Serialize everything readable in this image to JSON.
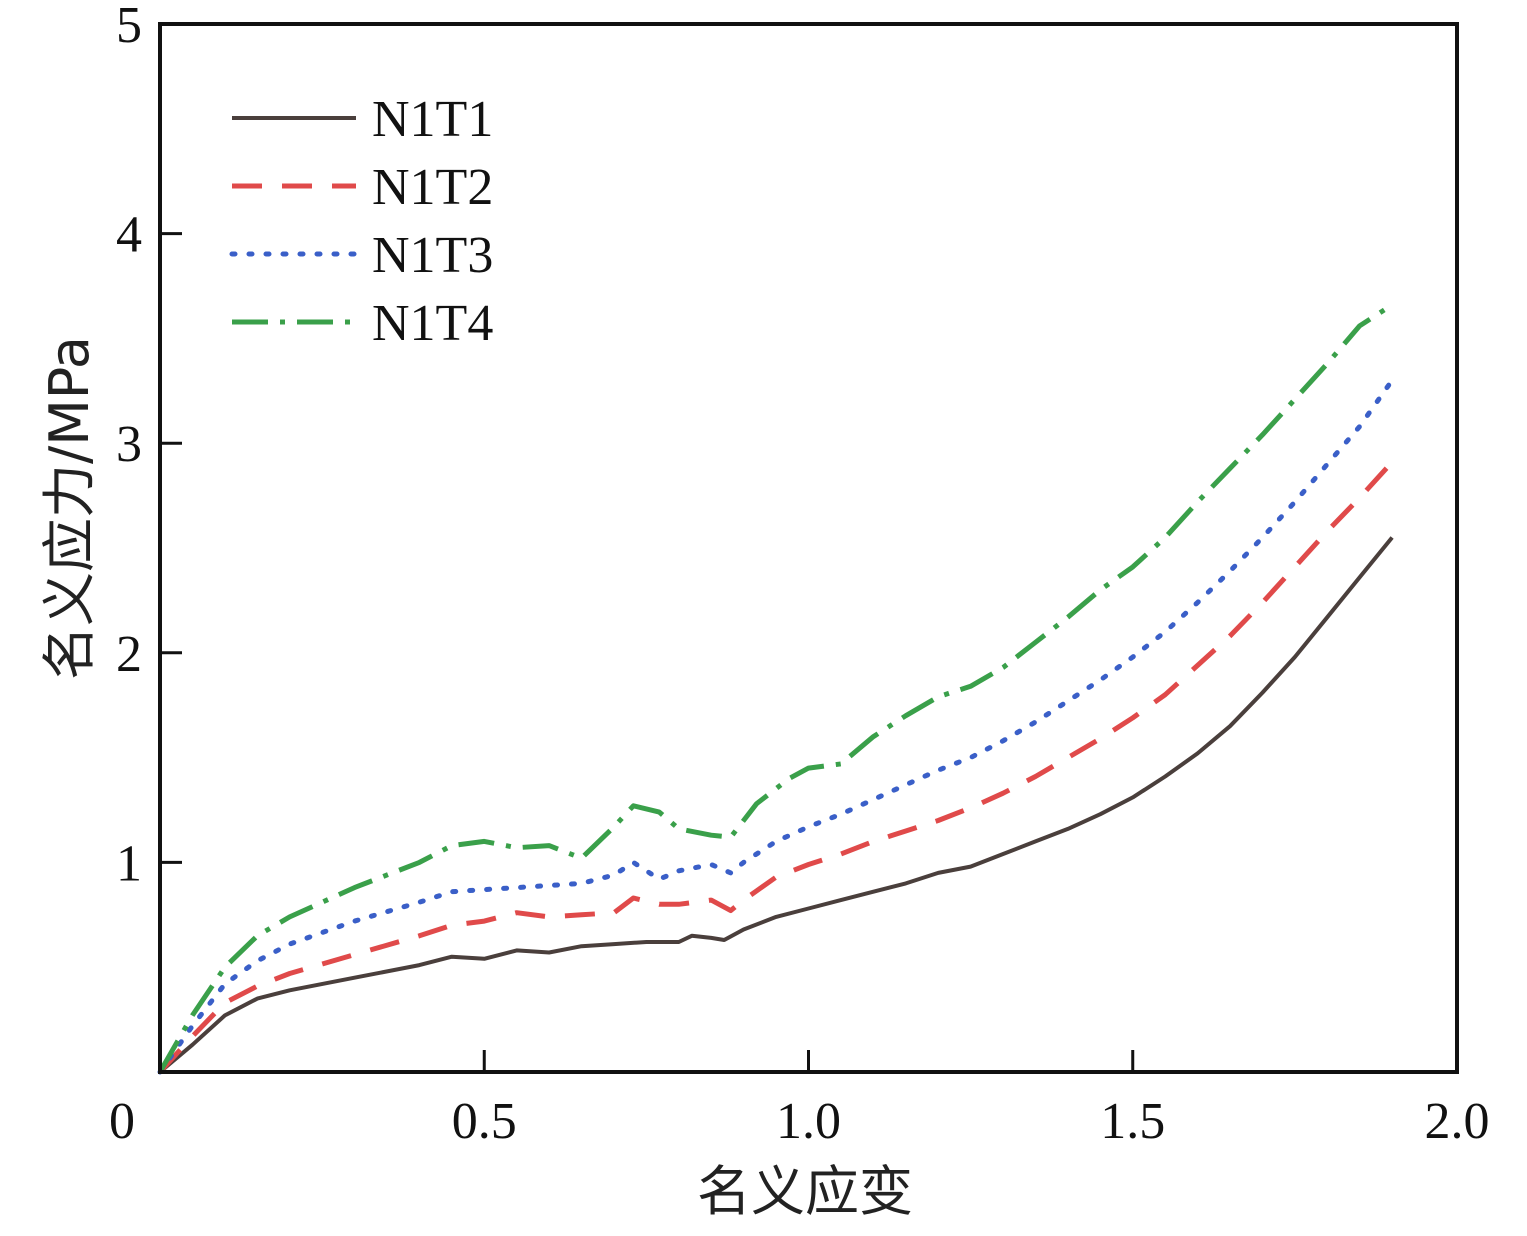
{
  "chart_data": {
    "type": "line",
    "title": "",
    "xlabel": "名义应变",
    "ylabel": "名义应力/MPa",
    "xlim": [
      0,
      2.0
    ],
    "ylim": [
      0,
      5
    ],
    "x_ticks": [
      0,
      0.5,
      1.0,
      1.5,
      2.0
    ],
    "x_tick_labels": [
      "0",
      "0.5",
      "1.0",
      "1.5",
      "2.0"
    ],
    "y_ticks": [
      1,
      2,
      3,
      4,
      5
    ],
    "y_tick_labels": [
      "1",
      "2",
      "3",
      "4",
      "5"
    ],
    "legend_position": "top-left",
    "grid": false,
    "series": [
      {
        "name": "N1T1",
        "color": "#4a3f3c",
        "dash": "solid",
        "points": [
          [
            0,
            0
          ],
          [
            0.05,
            0.13
          ],
          [
            0.1,
            0.27
          ],
          [
            0.15,
            0.35
          ],
          [
            0.2,
            0.39
          ],
          [
            0.3,
            0.45
          ],
          [
            0.4,
            0.51
          ],
          [
            0.45,
            0.55
          ],
          [
            0.5,
            0.54
          ],
          [
            0.55,
            0.58
          ],
          [
            0.6,
            0.57
          ],
          [
            0.65,
            0.6
          ],
          [
            0.7,
            0.61
          ],
          [
            0.75,
            0.62
          ],
          [
            0.8,
            0.62
          ],
          [
            0.82,
            0.65
          ],
          [
            0.85,
            0.64
          ],
          [
            0.87,
            0.63
          ],
          [
            0.9,
            0.68
          ],
          [
            0.95,
            0.74
          ],
          [
            1.0,
            0.78
          ],
          [
            1.05,
            0.82
          ],
          [
            1.1,
            0.86
          ],
          [
            1.15,
            0.9
          ],
          [
            1.2,
            0.95
          ],
          [
            1.25,
            0.98
          ],
          [
            1.3,
            1.04
          ],
          [
            1.35,
            1.1
          ],
          [
            1.4,
            1.16
          ],
          [
            1.45,
            1.23
          ],
          [
            1.5,
            1.31
          ],
          [
            1.55,
            1.41
          ],
          [
            1.6,
            1.52
          ],
          [
            1.65,
            1.65
          ],
          [
            1.7,
            1.81
          ],
          [
            1.75,
            1.98
          ],
          [
            1.8,
            2.17
          ],
          [
            1.85,
            2.36
          ],
          [
            1.9,
            2.55
          ]
        ]
      },
      {
        "name": "N1T2",
        "color": "#e04a4a",
        "dash": "30,20",
        "points": [
          [
            0,
            0
          ],
          [
            0.05,
            0.17
          ],
          [
            0.1,
            0.33
          ],
          [
            0.15,
            0.41
          ],
          [
            0.2,
            0.47
          ],
          [
            0.3,
            0.56
          ],
          [
            0.4,
            0.65
          ],
          [
            0.45,
            0.7
          ],
          [
            0.5,
            0.72
          ],
          [
            0.55,
            0.76
          ],
          [
            0.6,
            0.74
          ],
          [
            0.65,
            0.75
          ],
          [
            0.7,
            0.76
          ],
          [
            0.73,
            0.83
          ],
          [
            0.77,
            0.8
          ],
          [
            0.8,
            0.8
          ],
          [
            0.85,
            0.82
          ],
          [
            0.88,
            0.77
          ],
          [
            0.9,
            0.82
          ],
          [
            0.95,
            0.93
          ],
          [
            1.0,
            0.99
          ],
          [
            1.05,
            1.04
          ],
          [
            1.1,
            1.1
          ],
          [
            1.15,
            1.15
          ],
          [
            1.2,
            1.2
          ],
          [
            1.25,
            1.26
          ],
          [
            1.3,
            1.33
          ],
          [
            1.35,
            1.41
          ],
          [
            1.4,
            1.5
          ],
          [
            1.45,
            1.59
          ],
          [
            1.5,
            1.69
          ],
          [
            1.55,
            1.8
          ],
          [
            1.6,
            1.94
          ],
          [
            1.65,
            2.08
          ],
          [
            1.7,
            2.24
          ],
          [
            1.75,
            2.41
          ],
          [
            1.8,
            2.58
          ],
          [
            1.85,
            2.74
          ],
          [
            1.9,
            2.91
          ]
        ]
      },
      {
        "name": "N1T3",
        "color": "#3a5fc8",
        "dash": "3,14",
        "points": [
          [
            0,
            0
          ],
          [
            0.05,
            0.22
          ],
          [
            0.1,
            0.42
          ],
          [
            0.15,
            0.53
          ],
          [
            0.2,
            0.61
          ],
          [
            0.3,
            0.72
          ],
          [
            0.4,
            0.81
          ],
          [
            0.45,
            0.86
          ],
          [
            0.5,
            0.87
          ],
          [
            0.55,
            0.88
          ],
          [
            0.6,
            0.89
          ],
          [
            0.65,
            0.9
          ],
          [
            0.7,
            0.94
          ],
          [
            0.73,
            1.0
          ],
          [
            0.77,
            0.92
          ],
          [
            0.8,
            0.96
          ],
          [
            0.85,
            0.99
          ],
          [
            0.88,
            0.95
          ],
          [
            0.9,
            1.0
          ],
          [
            0.95,
            1.1
          ],
          [
            1.0,
            1.17
          ],
          [
            1.05,
            1.23
          ],
          [
            1.1,
            1.3
          ],
          [
            1.15,
            1.37
          ],
          [
            1.2,
            1.44
          ],
          [
            1.25,
            1.5
          ],
          [
            1.3,
            1.58
          ],
          [
            1.35,
            1.67
          ],
          [
            1.4,
            1.77
          ],
          [
            1.45,
            1.87
          ],
          [
            1.5,
            1.98
          ],
          [
            1.55,
            2.1
          ],
          [
            1.6,
            2.24
          ],
          [
            1.65,
            2.39
          ],
          [
            1.7,
            2.55
          ],
          [
            1.75,
            2.72
          ],
          [
            1.8,
            2.9
          ],
          [
            1.85,
            3.08
          ],
          [
            1.9,
            3.3
          ]
        ]
      },
      {
        "name": "N1T4",
        "color": "#3aa04a",
        "dash": "36,12,5,12",
        "points": [
          [
            0,
            0
          ],
          [
            0.05,
            0.27
          ],
          [
            0.1,
            0.5
          ],
          [
            0.15,
            0.65
          ],
          [
            0.2,
            0.74
          ],
          [
            0.3,
            0.88
          ],
          [
            0.4,
            1.0
          ],
          [
            0.45,
            1.08
          ],
          [
            0.5,
            1.1
          ],
          [
            0.55,
            1.07
          ],
          [
            0.6,
            1.08
          ],
          [
            0.65,
            1.02
          ],
          [
            0.7,
            1.17
          ],
          [
            0.73,
            1.27
          ],
          [
            0.77,
            1.24
          ],
          [
            0.8,
            1.16
          ],
          [
            0.85,
            1.13
          ],
          [
            0.88,
            1.12
          ],
          [
            0.92,
            1.28
          ],
          [
            0.97,
            1.4
          ],
          [
            1.0,
            1.45
          ],
          [
            1.05,
            1.47
          ],
          [
            1.1,
            1.6
          ],
          [
            1.15,
            1.7
          ],
          [
            1.2,
            1.79
          ],
          [
            1.25,
            1.84
          ],
          [
            1.3,
            1.93
          ],
          [
            1.35,
            2.05
          ],
          [
            1.4,
            2.17
          ],
          [
            1.45,
            2.3
          ],
          [
            1.5,
            2.41
          ],
          [
            1.55,
            2.55
          ],
          [
            1.6,
            2.72
          ],
          [
            1.65,
            2.88
          ],
          [
            1.7,
            3.04
          ],
          [
            1.75,
            3.21
          ],
          [
            1.8,
            3.38
          ],
          [
            1.85,
            3.56
          ],
          [
            1.9,
            3.66
          ]
        ]
      }
    ]
  }
}
